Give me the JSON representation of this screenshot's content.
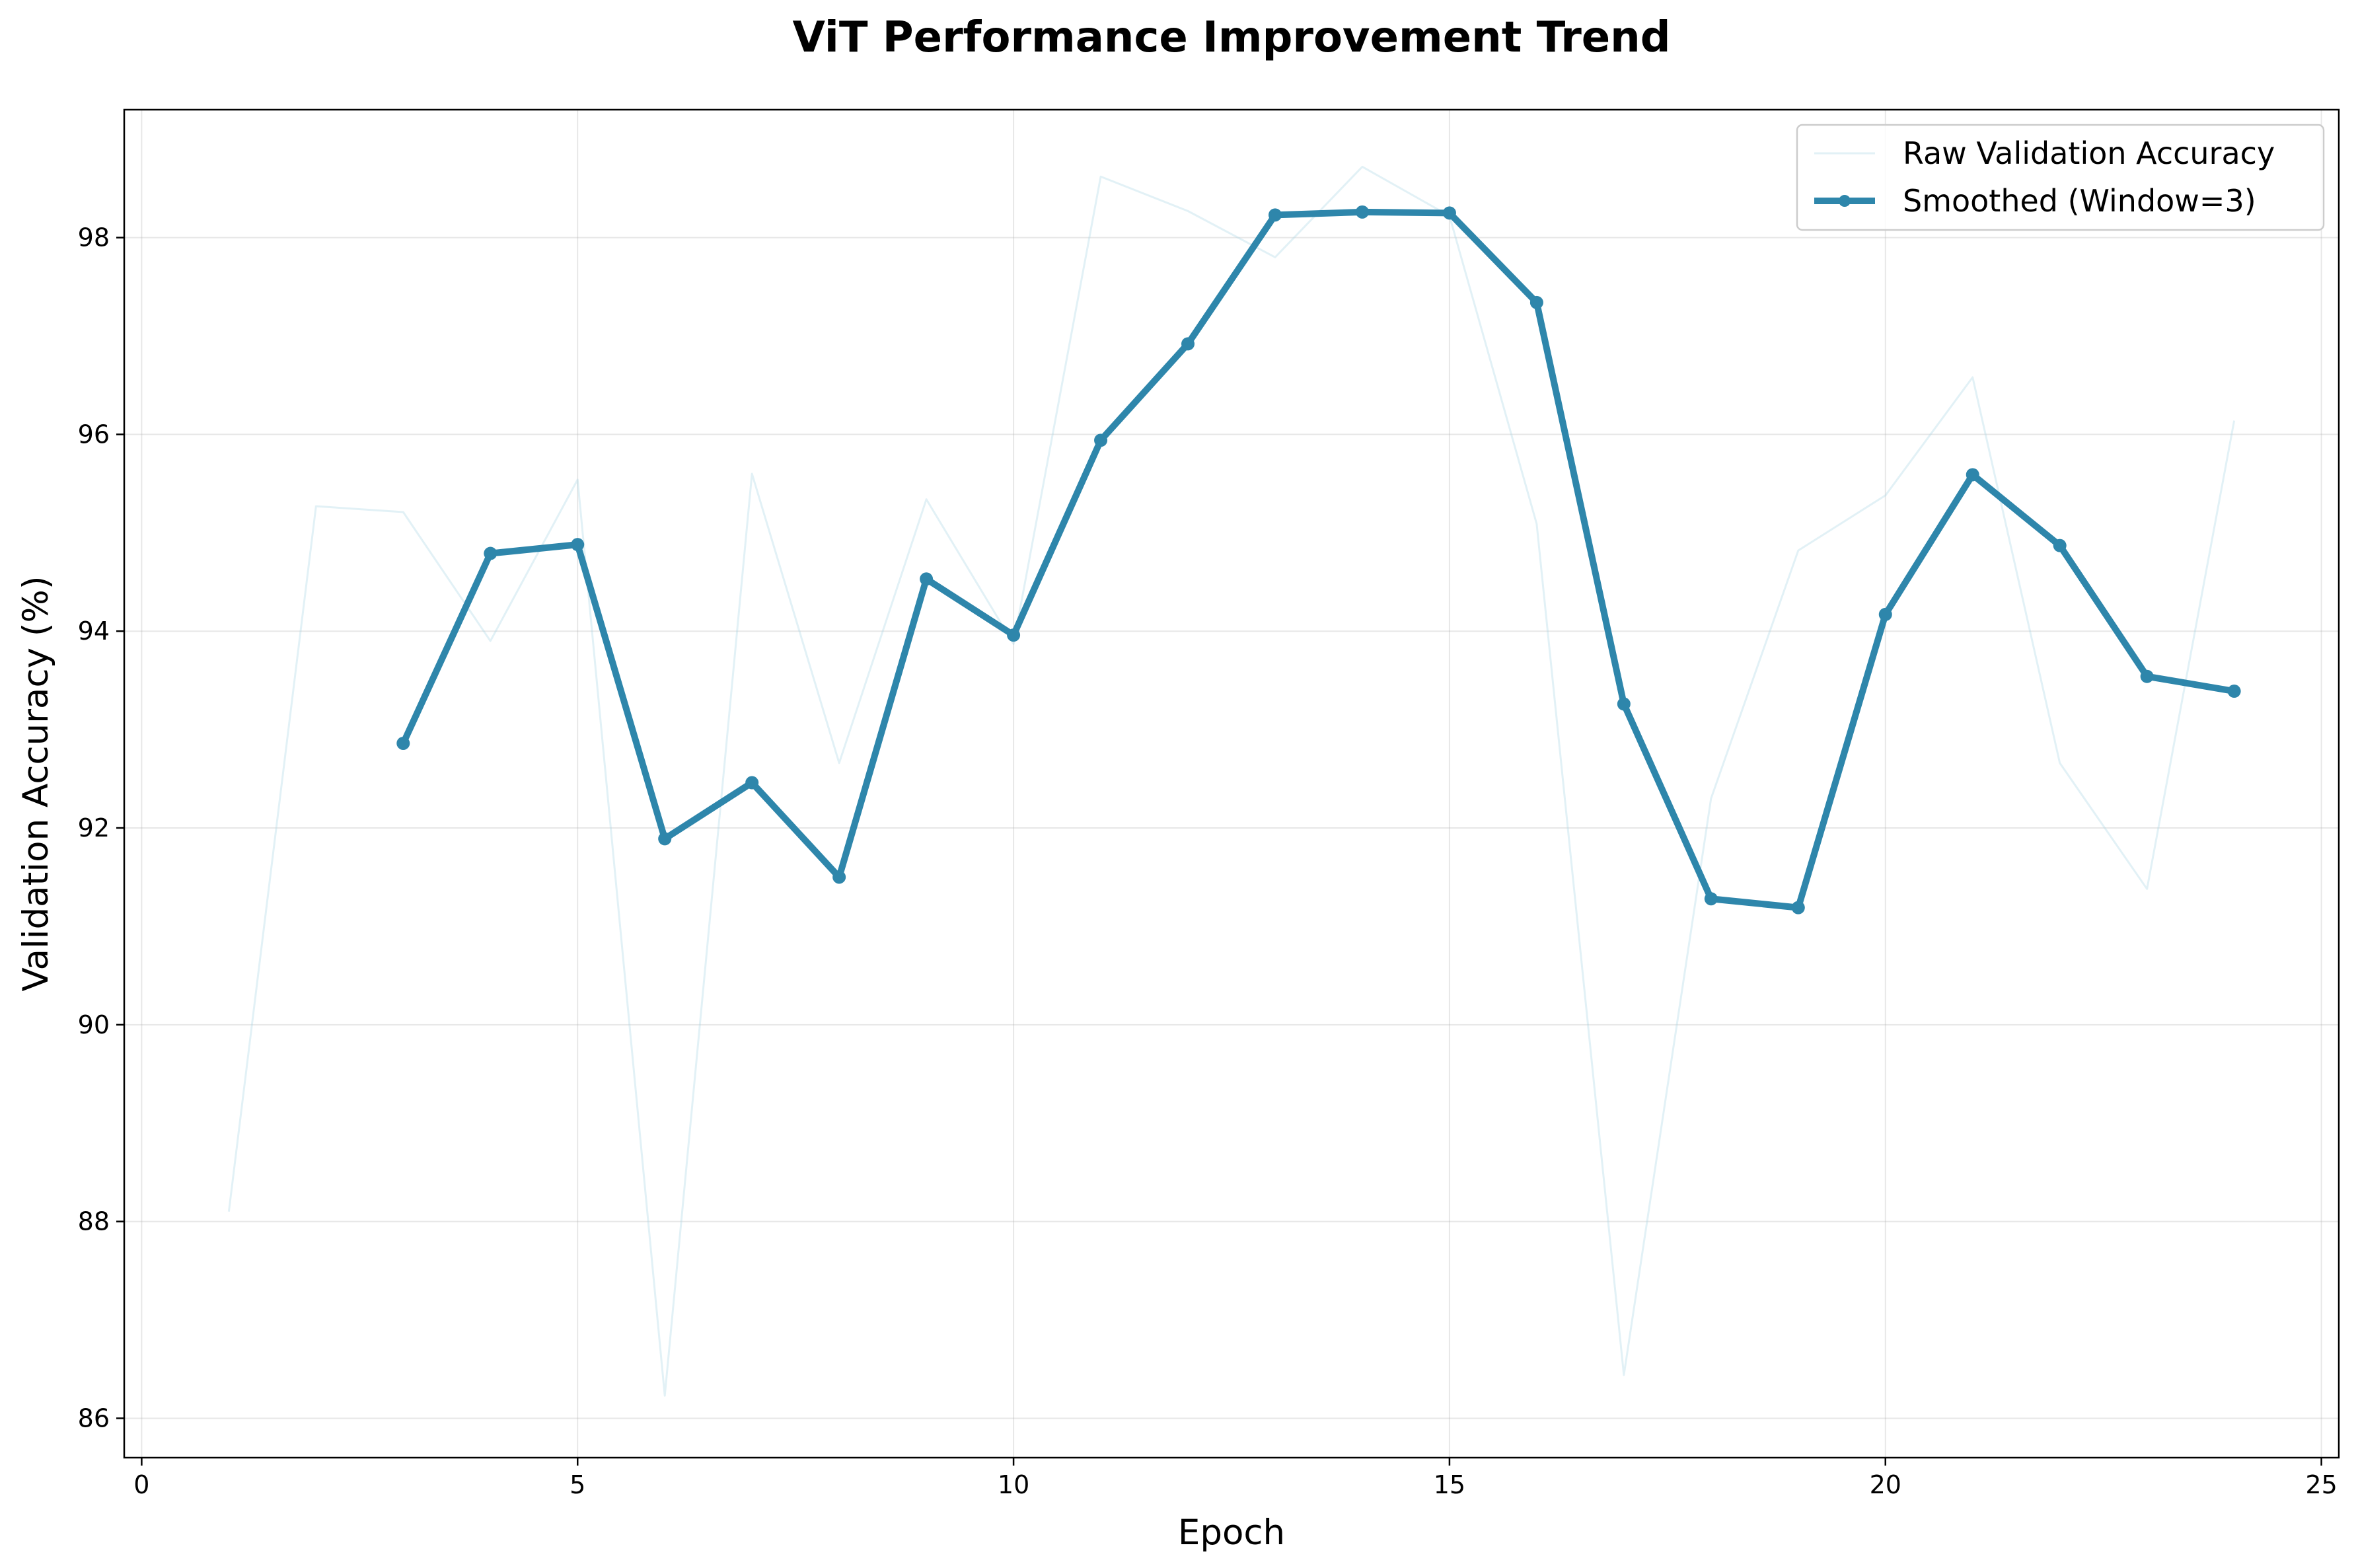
{
  "chart_data": {
    "type": "line",
    "title": "ViT Performance Improvement Trend",
    "xlabel": "Epoch",
    "ylabel": "Validation Accuracy (%)",
    "xlim": [
      -0.2,
      25.2
    ],
    "ylim": [
      85.6,
      99.3
    ],
    "xticks": [
      0,
      5,
      10,
      15,
      20,
      25
    ],
    "yticks": [
      86,
      88,
      90,
      92,
      94,
      96,
      98
    ],
    "grid": true,
    "legend_position": "upper-right",
    "colors": {
      "raw": "#add8e6",
      "smoothed": "#2e86ab"
    },
    "series": [
      {
        "name": "Raw Validation Accuracy",
        "x": [
          1,
          2,
          3,
          4,
          5,
          6,
          7,
          8,
          9,
          10,
          11,
          12,
          13,
          14,
          15,
          16,
          17,
          18,
          19,
          20,
          21,
          22,
          23,
          24
        ],
        "values": [
          88.1,
          95.27,
          95.21,
          93.9,
          95.54,
          86.23,
          95.6,
          92.66,
          95.34,
          93.87,
          98.62,
          98.27,
          97.8,
          98.72,
          98.22,
          95.09,
          86.44,
          92.3,
          94.82,
          95.38,
          96.58,
          92.66,
          91.38,
          96.14
        ]
      },
      {
        "name": "Smoothed (Window=3)",
        "x": [
          3,
          4,
          5,
          6,
          7,
          8,
          9,
          10,
          11,
          12,
          13,
          14,
          15,
          16,
          17,
          18,
          19,
          20,
          21,
          22,
          23,
          24
        ],
        "values": [
          92.86,
          94.79,
          94.88,
          91.89,
          92.46,
          91.5,
          94.53,
          93.96,
          95.94,
          96.92,
          98.23,
          98.26,
          98.25,
          97.34,
          93.26,
          91.28,
          91.19,
          94.17,
          95.59,
          94.87,
          93.54,
          93.39
        ]
      }
    ]
  }
}
